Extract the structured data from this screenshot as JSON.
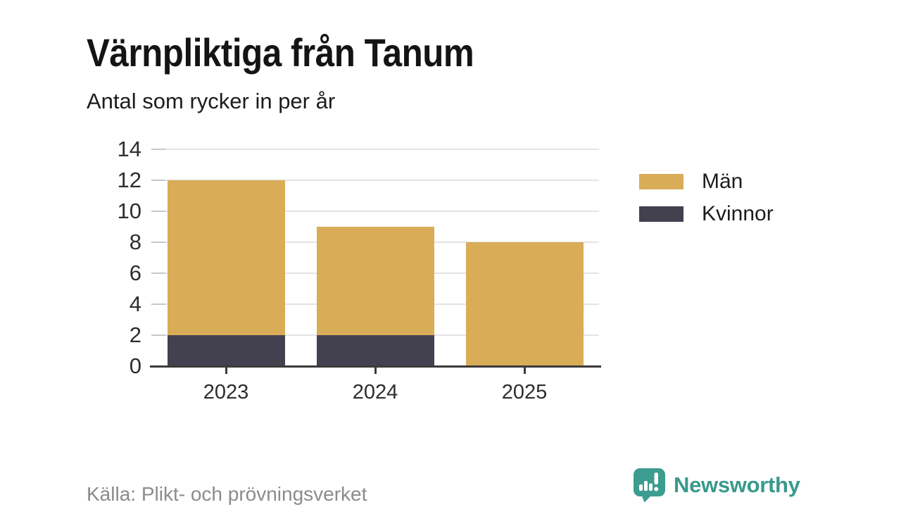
{
  "header": {
    "title": "Värnpliktiga från Tanum",
    "subtitle": "Antal som rycker in per år"
  },
  "chart_data": {
    "type": "bar",
    "stacked": true,
    "title": "Värnpliktiga från Tanum",
    "subtitle": "Antal som rycker in per år",
    "categories": [
      "2023",
      "2024",
      "2025"
    ],
    "series": [
      {
        "name": "Män",
        "color": "#D9AC58",
        "values": [
          10,
          7,
          8
        ]
      },
      {
        "name": "Kvinnor",
        "color": "#43414F",
        "values": [
          2,
          2,
          0
        ]
      }
    ],
    "stack_order_bottom_to_top": [
      "Kvinnor",
      "Män"
    ],
    "totals": [
      12,
      9,
      8
    ],
    "xlabel": "",
    "ylabel": "",
    "ylim": [
      0,
      14
    ],
    "ytick_step": 2,
    "yticks": [
      0,
      2,
      4,
      6,
      8,
      10,
      12,
      14
    ],
    "grid": true,
    "legend_position": "right"
  },
  "legend": {
    "items": [
      {
        "label": "Män",
        "color": "#D9AC58"
      },
      {
        "label": "Kvinnor",
        "color": "#43414F"
      }
    ]
  },
  "footer": {
    "source": "Källa: Plikt- och prövningsverket",
    "brand": "Newsworthy",
    "brand_color": "#389A8C"
  },
  "icons": {
    "brand_logo": "newsworthy-speech-bubble-bar-chart-icon"
  }
}
